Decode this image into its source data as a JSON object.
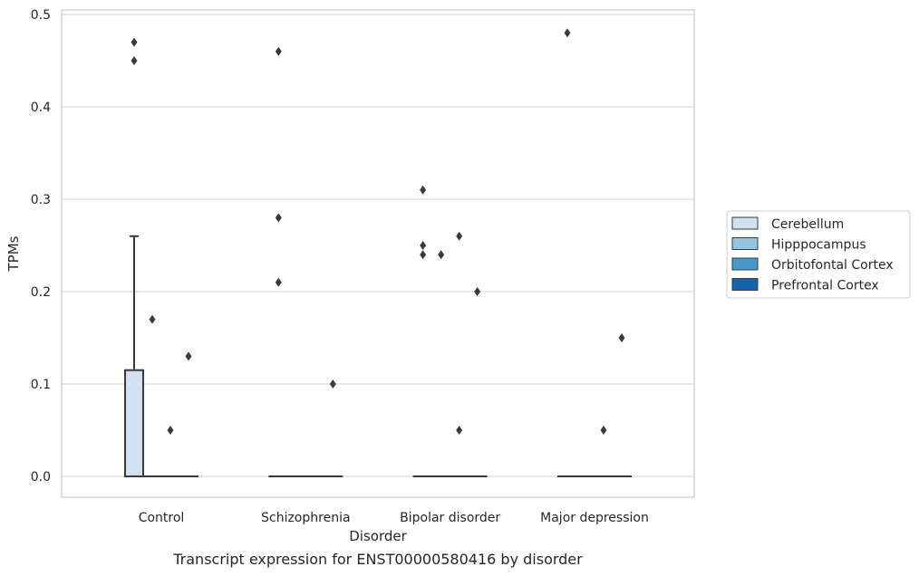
{
  "chart_data": {
    "type": "box",
    "title": "",
    "caption": "Transcript expression for ENST00000580416 by disorder",
    "xlabel": "Disorder",
    "ylabel": "TPMs",
    "ylim": [
      -0.023,
      0.505
    ],
    "yticks": [
      0.0,
      0.1,
      0.2,
      0.3,
      0.4,
      0.5
    ],
    "ytick_labels": [
      "0.0",
      "0.1",
      "0.2",
      "0.3",
      "0.4",
      "0.5"
    ],
    "grid": true,
    "legend_position": "right",
    "categories": [
      "Control",
      "Schizophrenia",
      "Bipolar disorder",
      "Major depression"
    ],
    "series": [
      {
        "name": "Cerebellum",
        "color": "#d0e1f2",
        "boxes": [
          {
            "q1": 0.0,
            "median": 0.0,
            "q3": 0.115,
            "whisker_low": 0.0,
            "whisker_high": 0.26,
            "outliers": [
              0.45,
              0.47
            ]
          },
          {
            "q1": 0.0,
            "median": 0.0,
            "q3": 0.0,
            "whisker_low": 0.0,
            "whisker_high": 0.0,
            "outliers": [
              0.46,
              0.28,
              0.21
            ]
          },
          {
            "q1": 0.0,
            "median": 0.0,
            "q3": 0.0,
            "whisker_low": 0.0,
            "whisker_high": 0.0,
            "outliers": [
              0.31,
              0.25,
              0.24
            ]
          },
          {
            "q1": 0.0,
            "median": 0.0,
            "q3": 0.0,
            "whisker_low": 0.0,
            "whisker_high": 0.0,
            "outliers": [
              0.48
            ]
          }
        ]
      },
      {
        "name": "Hipppocampus",
        "color": "#94c4df",
        "boxes": [
          {
            "q1": 0.0,
            "median": 0.0,
            "q3": 0.0,
            "whisker_low": 0.0,
            "whisker_high": 0.0,
            "outliers": [
              0.17
            ]
          },
          {
            "q1": 0.0,
            "median": 0.0,
            "q3": 0.0,
            "whisker_low": 0.0,
            "whisker_high": 0.0,
            "outliers": []
          },
          {
            "q1": 0.0,
            "median": 0.0,
            "q3": 0.0,
            "whisker_low": 0.0,
            "whisker_high": 0.0,
            "outliers": [
              0.24
            ]
          },
          {
            "q1": 0.0,
            "median": 0.0,
            "q3": 0.0,
            "whisker_low": 0.0,
            "whisker_high": 0.0,
            "outliers": []
          }
        ]
      },
      {
        "name": "Orbitofontal Cortex",
        "color": "#4a98c9",
        "boxes": [
          {
            "q1": 0.0,
            "median": 0.0,
            "q3": 0.0,
            "whisker_low": 0.0,
            "whisker_high": 0.0,
            "outliers": [
              0.05
            ]
          },
          {
            "q1": 0.0,
            "median": 0.0,
            "q3": 0.0,
            "whisker_low": 0.0,
            "whisker_high": 0.0,
            "outliers": []
          },
          {
            "q1": 0.0,
            "median": 0.0,
            "q3": 0.0,
            "whisker_low": 0.0,
            "whisker_high": 0.0,
            "outliers": [
              0.26,
              0.05
            ]
          },
          {
            "q1": 0.0,
            "median": 0.0,
            "q3": 0.0,
            "whisker_low": 0.0,
            "whisker_high": 0.0,
            "outliers": [
              0.05
            ]
          }
        ]
      },
      {
        "name": "Prefrontal Cortex",
        "color": "#1764ab",
        "boxes": [
          {
            "q1": 0.0,
            "median": 0.0,
            "q3": 0.0,
            "whisker_low": 0.0,
            "whisker_high": 0.0,
            "outliers": [
              0.13
            ]
          },
          {
            "q1": 0.0,
            "median": 0.0,
            "q3": 0.0,
            "whisker_low": 0.0,
            "whisker_high": 0.0,
            "outliers": [
              0.1
            ]
          },
          {
            "q1": 0.0,
            "median": 0.0,
            "q3": 0.0,
            "whisker_low": 0.0,
            "whisker_high": 0.0,
            "outliers": [
              0.2
            ]
          },
          {
            "q1": 0.0,
            "median": 0.0,
            "q3": 0.0,
            "whisker_low": 0.0,
            "whisker_high": 0.0,
            "outliers": [
              0.15
            ]
          }
        ]
      }
    ]
  }
}
